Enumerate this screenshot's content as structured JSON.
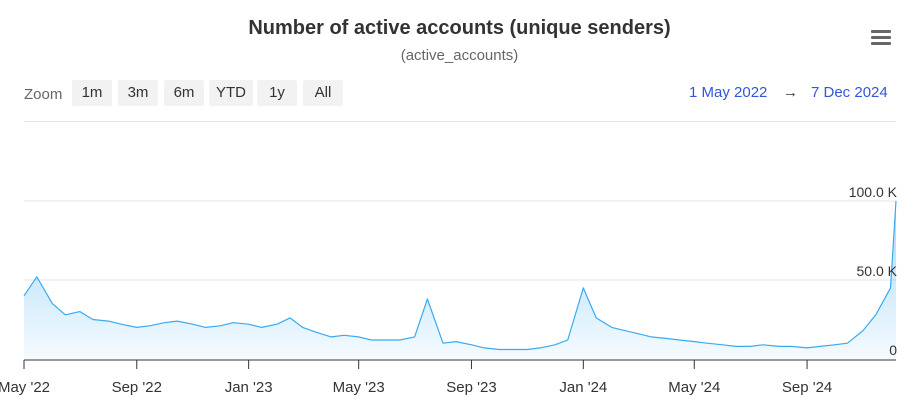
{
  "title": "Number of active accounts (unique senders)",
  "subtitle": "(active_accounts)",
  "menu_icon": "hamburger-menu-icon",
  "zoom": {
    "label": "Zoom",
    "buttons": [
      "1m",
      "3m",
      "6m",
      "YTD",
      "1y",
      "All"
    ]
  },
  "range": {
    "from": "1 May 2022",
    "arrow": "→",
    "to": "7 Dec 2024"
  },
  "colors": {
    "line": "#3aaaf0",
    "area": "#cfe9fb",
    "range_text": "#3355dd"
  },
  "chart_data": {
    "type": "area",
    "title": "Number of active accounts (unique senders)",
    "subtitle": "(active_accounts)",
    "xlabel": "",
    "ylabel": "",
    "y_ticks": [
      "0",
      "50.0 K",
      "100.0 K"
    ],
    "ylim": [
      0,
      100000
    ],
    "x_ticks": [
      "May '22",
      "Sep '22",
      "Jan '23",
      "May '23",
      "Sep '23",
      "Jan '24",
      "May '24",
      "Sep '24"
    ],
    "x_range": [
      "2022-05-01",
      "2024-12-07"
    ],
    "grid": true,
    "series": [
      {
        "x": [
          "2022-05-01",
          "2022-05-15",
          "2022-06-01",
          "2022-06-15",
          "2022-07-01",
          "2022-07-15",
          "2022-08-01",
          "2022-08-15",
          "2022-09-01",
          "2022-09-15",
          "2022-10-01",
          "2022-10-15",
          "2022-11-01",
          "2022-11-15",
          "2022-12-01",
          "2022-12-15",
          "2023-01-01",
          "2023-01-15",
          "2023-02-01",
          "2023-02-15",
          "2023-03-01",
          "2023-03-15",
          "2023-04-01",
          "2023-04-15",
          "2023-05-01",
          "2023-05-15",
          "2023-06-01",
          "2023-06-15",
          "2023-07-01",
          "2023-07-15",
          "2023-08-01",
          "2023-08-15",
          "2023-09-01",
          "2023-09-15",
          "2023-10-01",
          "2023-10-15",
          "2023-11-01",
          "2023-11-15",
          "2023-12-01",
          "2023-12-15",
          "2024-01-01",
          "2024-01-15",
          "2024-02-01",
          "2024-02-15",
          "2024-03-01",
          "2024-03-15",
          "2024-04-01",
          "2024-04-15",
          "2024-05-01",
          "2024-05-15",
          "2024-06-01",
          "2024-06-15",
          "2024-07-01",
          "2024-07-15",
          "2024-08-01",
          "2024-08-15",
          "2024-09-01",
          "2024-09-15",
          "2024-10-01",
          "2024-10-15",
          "2024-11-01",
          "2024-11-15",
          "2024-12-01",
          "2024-12-07"
        ],
        "values": [
          40000,
          52000,
          35000,
          28000,
          30000,
          25000,
          24000,
          22000,
          20000,
          21000,
          23000,
          24000,
          22000,
          20000,
          21000,
          23000,
          22000,
          20000,
          22000,
          26000,
          20000,
          17000,
          14000,
          15000,
          14000,
          12000,
          12000,
          12000,
          14000,
          38000,
          10000,
          11000,
          9000,
          7000,
          6000,
          6000,
          6000,
          7000,
          9000,
          12000,
          45000,
          26000,
          20000,
          18000,
          16000,
          14000,
          13000,
          12000,
          11000,
          10000,
          9000,
          8000,
          8000,
          9000,
          8000,
          8000,
          7000,
          8000,
          9000,
          10000,
          18000,
          28000,
          45000,
          100000
        ]
      }
    ]
  }
}
